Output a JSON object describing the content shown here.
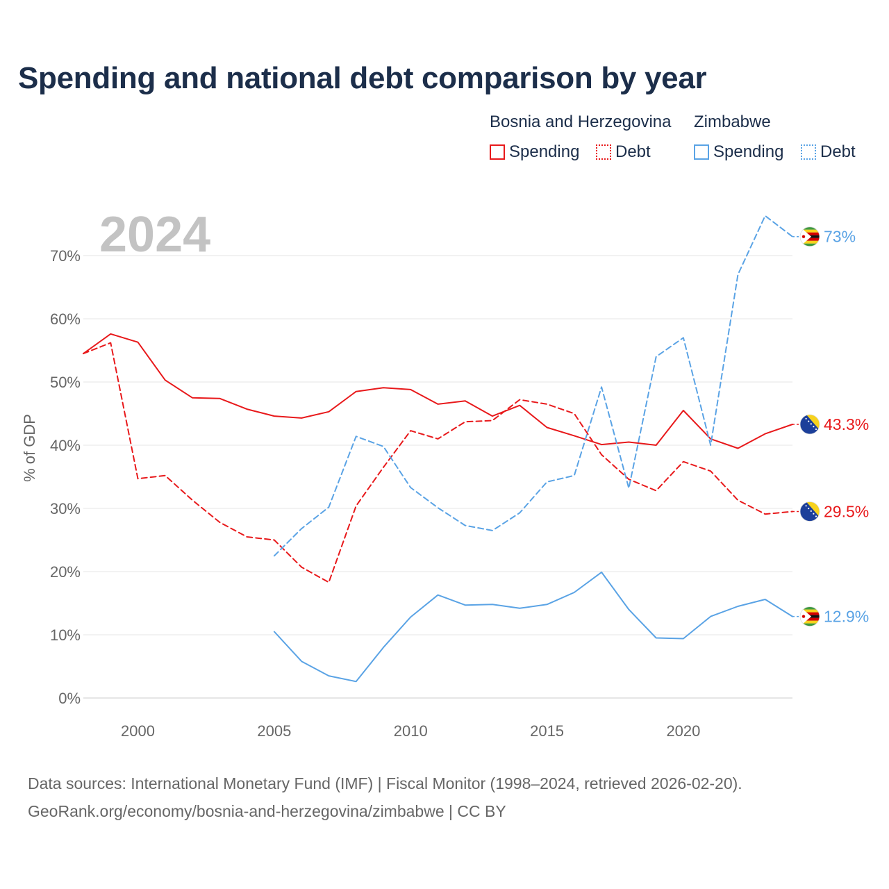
{
  "title": "Spending and national debt comparison by year",
  "legend": {
    "groups": [
      {
        "country": "Bosnia and Herzegovina",
        "color": "#e8191b",
        "items": [
          {
            "label": "Spending",
            "style": "solid"
          },
          {
            "label": "Debt",
            "style": "dotted"
          }
        ]
      },
      {
        "country": "Zimbabwe",
        "color": "#5aa3e5",
        "items": [
          {
            "label": "Spending",
            "style": "solid"
          },
          {
            "label": "Debt",
            "style": "dotted"
          }
        ]
      }
    ]
  },
  "source": {
    "line1": "Data sources: International Monetary Fund (IMF) | Fiscal Monitor (1998–2024, retrieved 2026-02-20).",
    "line2": "GeoRank.org/economy/bosnia-and-herzegovina/zimbabwe | CC BY"
  },
  "chart_data": {
    "type": "line",
    "title": "Spending and national debt comparison by year",
    "year_label": "2024",
    "xlabel": "",
    "ylabel": "% of GDP",
    "xlim": [
      1998,
      2024
    ],
    "ylim": [
      0,
      75
    ],
    "x_ticks": [
      2000,
      2005,
      2010,
      2015,
      2020
    ],
    "y_ticks": [
      0,
      10,
      20,
      30,
      40,
      50,
      60,
      70
    ],
    "y_tick_labels": [
      "0%",
      "10%",
      "20%",
      "30%",
      "40%",
      "50%",
      "60%",
      "70%"
    ],
    "grid": true,
    "series": [
      {
        "name": "Bosnia and Herzegovina Spending",
        "country": "Bosnia and Herzegovina",
        "color": "#e8191b",
        "dash": "solid",
        "flag": "bosnia-flag-icon",
        "end_label": "43.3%",
        "x": [
          1998,
          1999,
          2000,
          2001,
          2002,
          2003,
          2004,
          2005,
          2006,
          2007,
          2008,
          2009,
          2010,
          2011,
          2012,
          2013,
          2014,
          2015,
          2016,
          2017,
          2018,
          2019,
          2020,
          2021,
          2022,
          2023,
          2024
        ],
        "values": [
          54.5,
          57.6,
          56.3,
          50.3,
          47.5,
          47.4,
          45.7,
          44.6,
          44.3,
          45.3,
          48.5,
          49.1,
          48.8,
          46.5,
          47.0,
          44.6,
          46.3,
          42.8,
          41.5,
          40.1,
          40.5,
          40.0,
          45.5,
          41.0,
          39.5,
          41.8,
          43.3
        ]
      },
      {
        "name": "Bosnia and Herzegovina Debt",
        "country": "Bosnia and Herzegovina",
        "color": "#e8191b",
        "dash": "dashed",
        "flag": "bosnia-flag-icon",
        "end_label": "29.5%",
        "x": [
          1998,
          1999,
          2000,
          2001,
          2002,
          2003,
          2004,
          2005,
          2006,
          2007,
          2008,
          2009,
          2010,
          2011,
          2012,
          2013,
          2014,
          2015,
          2016,
          2017,
          2018,
          2019,
          2020,
          2021,
          2022,
          2023,
          2024
        ],
        "values": [
          54.5,
          56.2,
          34.7,
          35.2,
          31.3,
          27.8,
          25.5,
          25.0,
          20.7,
          18.3,
          30.4,
          36.5,
          42.3,
          41.0,
          43.7,
          43.9,
          47.2,
          46.5,
          45.0,
          38.5,
          34.6,
          32.8,
          37.4,
          35.9,
          31.3,
          29.1,
          29.5
        ]
      },
      {
        "name": "Zimbabwe Spending",
        "country": "Zimbabwe",
        "color": "#5aa3e5",
        "dash": "solid",
        "flag": "zimbabwe-flag-icon",
        "end_label": "12.9%",
        "x": [
          2005,
          2006,
          2007,
          2008,
          2009,
          2010,
          2011,
          2012,
          2013,
          2014,
          2015,
          2016,
          2017,
          2018,
          2019,
          2020,
          2021,
          2022,
          2023,
          2024
        ],
        "values": [
          10.5,
          5.8,
          3.5,
          2.6,
          8.0,
          12.8,
          16.3,
          14.7,
          14.8,
          14.2,
          14.8,
          16.7,
          19.9,
          14.0,
          9.5,
          9.4,
          12.9,
          14.5,
          15.6,
          12.9
        ]
      },
      {
        "name": "Zimbabwe Debt",
        "country": "Zimbabwe",
        "color": "#5aa3e5",
        "dash": "dashed",
        "flag": "zimbabwe-flag-icon",
        "end_label": "73%",
        "x": [
          2005,
          2006,
          2007,
          2008,
          2009,
          2010,
          2011,
          2012,
          2013,
          2014,
          2015,
          2016,
          2017,
          2018,
          2019,
          2020,
          2021,
          2022,
          2023,
          2024
        ],
        "values": [
          22.5,
          26.8,
          30.2,
          41.4,
          39.8,
          33.3,
          30.1,
          27.3,
          26.5,
          29.3,
          34.2,
          35.2,
          49.2,
          33.2,
          54.0,
          57.0,
          40.0,
          67.0,
          76.3,
          73.0
        ]
      }
    ]
  }
}
